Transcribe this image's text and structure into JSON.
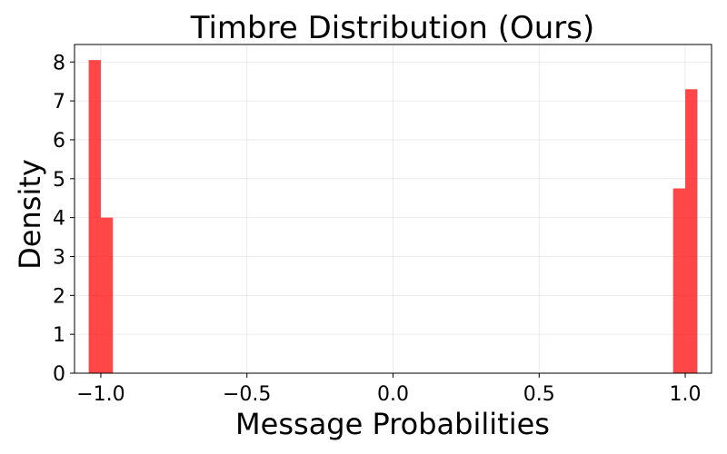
{
  "chart_data": {
    "type": "bar",
    "title": "Timbre Distribution (Ours)",
    "xlabel": "Message Probabilities",
    "ylabel": "Density",
    "xlim": [
      -1.09,
      1.09
    ],
    "ylim": [
      0,
      8.45
    ],
    "x_ticks": [
      -1.0,
      -0.5,
      0.0,
      0.5,
      1.0
    ],
    "x_tick_labels": [
      "−1.0",
      "−0.5",
      "0.0",
      "0.5",
      "1.0"
    ],
    "y_ticks": [
      0,
      1,
      2,
      3,
      4,
      5,
      6,
      7,
      8
    ],
    "y_tick_labels": [
      "0",
      "1",
      "2",
      "3",
      "4",
      "5",
      "6",
      "7",
      "8"
    ],
    "grid": true,
    "bar_color": "#ff0000",
    "bar_opacity": 0.72,
    "bin_width": 0.0415,
    "bins": [
      {
        "x0": -1.0415,
        "x1": -1.0,
        "value": 8.05
      },
      {
        "x0": -1.0,
        "x1": -0.9585,
        "value": 4.0
      },
      {
        "x0": 0.9585,
        "x1": 1.0,
        "value": 4.75
      },
      {
        "x0": 1.0,
        "x1": 1.0415,
        "value": 7.3
      }
    ]
  }
}
